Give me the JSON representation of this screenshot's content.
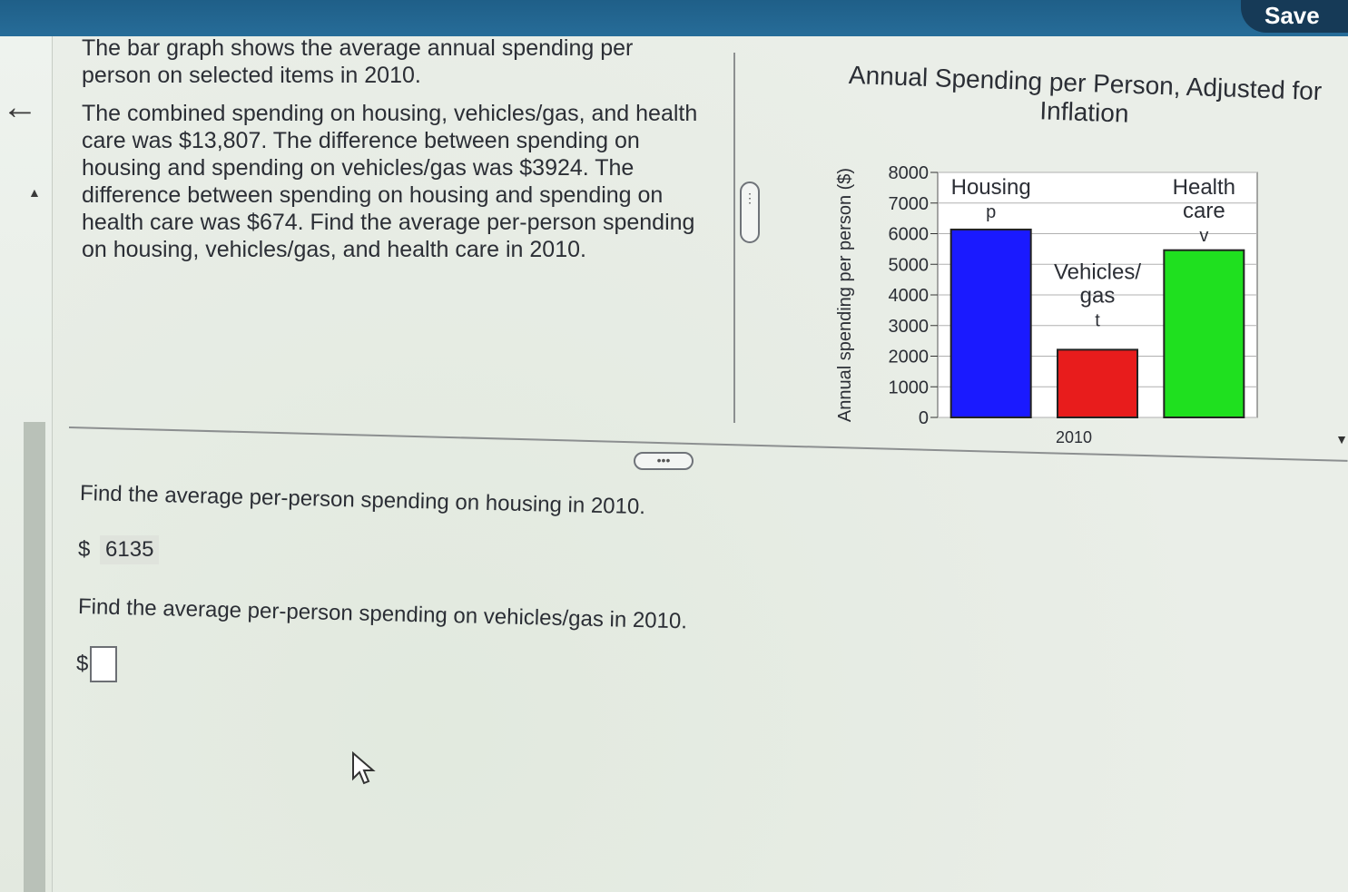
{
  "header": {
    "save_label": "Save"
  },
  "nav": {
    "back_icon": "arrow-left-icon",
    "up_icon": "caret-up-icon"
  },
  "problem": {
    "intro": "The bar graph shows the average annual spending per person on selected items in 2010.",
    "body": "The combined spending on housing, vehicles/gas, and health care was $13,807. The difference between spending on housing and spending on vehicles/gas was $3924. The difference between spending on housing and spending on health care was $674. Find the average per-person spending on housing, vehicles/gas, and health care in 2010."
  },
  "more_button_label": "⋮",
  "more_button_h_label": "•••",
  "questions": {
    "q1": "Find the average per-person spending on housing in 2010.",
    "a1_prefix": "$",
    "a1_value": "6135",
    "q2": "Find the average per-person spending on vehicles/gas in 2010.",
    "a2_prefix": "$",
    "a2_value": ""
  },
  "chart_data": {
    "type": "bar",
    "title": "Annual Spending per Person, Adjusted for Inflation",
    "ylabel": "Annual spending per person ($)",
    "xlabel": "2010",
    "ylim": [
      0,
      8000
    ],
    "yticks": [
      "0",
      "1000",
      "2000",
      "3000",
      "4000",
      "5000",
      "6000",
      "7000",
      "8000"
    ],
    "categories": [
      "Housing",
      "Vehicles/gas",
      "Health care"
    ],
    "category_label_lines": [
      [
        "Housing",
        "p"
      ],
      [
        "Vehicles/",
        "gas",
        "t"
      ],
      [
        "Health",
        "care",
        "v"
      ]
    ],
    "values": [
      6135,
      2211,
      5461
    ],
    "colors": [
      "#1a1aff",
      "#e81c1c",
      "#1fe01f"
    ]
  }
}
